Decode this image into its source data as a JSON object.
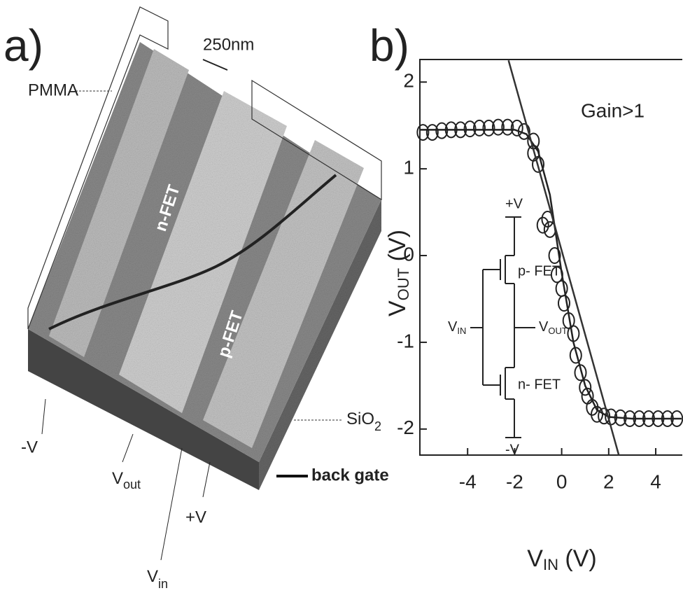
{
  "panel_a": {
    "label": "a)",
    "pmma": "PMMA",
    "scale": "250nm",
    "nfet": "n-FET",
    "pfet": "p-FET",
    "minus_v": "-V",
    "v_out": {
      "main": "V",
      "sub": "out"
    },
    "plus_v": "+V",
    "v_in": {
      "main": "V",
      "sub": "in"
    },
    "sio2": {
      "main": "SiO",
      "sub": "2"
    },
    "back_gate": "back gate"
  },
  "panel_b_label": "b)",
  "chart_data": {
    "type": "scatter",
    "x_label": {
      "main": "V",
      "sub": "IN",
      "rest": " (V)"
    },
    "y_label": {
      "main": "V",
      "sub": "OUT",
      "rest": " (V)"
    },
    "annotation": "Gain>1",
    "inset": {
      "plus_v": "+V",
      "pfet": "p- FET",
      "v_in": {
        "main": "V",
        "sub": "IN"
      },
      "v_out": {
        "main": "V",
        "sub": "OUT"
      },
      "nfet": "n- FET",
      "minus_v": "-V"
    },
    "xlim": [
      -6.03,
      5.13
    ],
    "ylim": [
      -2.3,
      2.26
    ],
    "xticks": [
      -4,
      -2,
      0,
      2,
      4
    ],
    "yticks": [
      -2,
      -1,
      0,
      1,
      2
    ],
    "series": [
      {
        "mode": "markers",
        "color": "#222222",
        "x": [
          -5.9,
          -5.5,
          -5.1,
          -4.7,
          -4.3,
          -3.9,
          -3.5,
          -3.1,
          -2.7,
          -2.3,
          -1.9,
          -1.6,
          -1.2,
          -1.2,
          -1.0,
          -0.8,
          -0.6,
          -0.5,
          -0.3,
          -0.2,
          0.0,
          0.1,
          0.3,
          0.5,
          0.6,
          0.8,
          1.0,
          1.1,
          1.3,
          1.5,
          1.8,
          2.1,
          2.5,
          2.9,
          3.3,
          3.7,
          4.1,
          4.5,
          4.9
        ],
        "values": [
          1.42,
          1.42,
          1.44,
          1.45,
          1.45,
          1.46,
          1.47,
          1.47,
          1.48,
          1.48,
          1.47,
          1.43,
          1.32,
          1.18,
          1.05,
          0.35,
          0.42,
          0.3,
          0.0,
          -0.22,
          -0.38,
          -0.55,
          -0.75,
          -0.9,
          -1.15,
          -1.35,
          -1.52,
          -1.62,
          -1.75,
          -1.83,
          -1.85,
          -1.86,
          -1.87,
          -1.88,
          -1.88,
          -1.88,
          -1.88,
          -1.88,
          -1.88
        ]
      },
      {
        "mode": "line",
        "color": "#222222",
        "x": [
          -6.0,
          -2.0,
          -1.5,
          -1.0,
          -0.5,
          0.0,
          0.5,
          1.0,
          1.5,
          2.0,
          3.0,
          5.1
        ],
        "values": [
          1.45,
          1.45,
          1.4,
          1.2,
          0.7,
          -0.2,
          -1.0,
          -1.5,
          -1.78,
          -1.86,
          -1.88,
          -1.88
        ]
      },
      {
        "mode": "line",
        "color": "#333333",
        "x": [
          -2.26,
          2.43
        ],
        "values": [
          2.25,
          -2.3
        ]
      }
    ]
  }
}
